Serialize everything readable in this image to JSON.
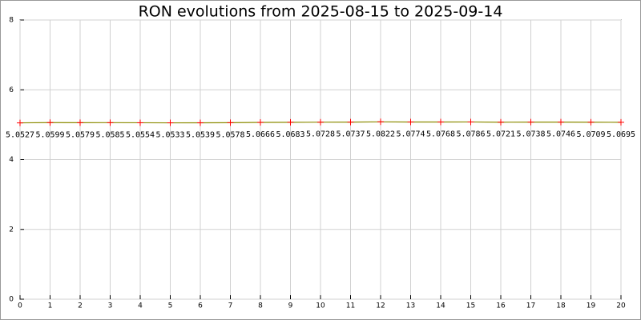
{
  "chart_data": {
    "type": "line",
    "title": "RON evolutions from 2025-08-15 to 2025-09-14",
    "x": [
      0,
      1,
      2,
      3,
      4,
      5,
      6,
      7,
      8,
      9,
      10,
      11,
      12,
      13,
      14,
      15,
      16,
      17,
      18,
      19,
      20
    ],
    "values": [
      5.0527,
      5.0599,
      5.0579,
      5.0585,
      5.0554,
      5.0533,
      5.0539,
      5.0578,
      5.0666,
      5.0683,
      5.0728,
      5.0737,
      5.0822,
      5.0774,
      5.0768,
      5.0786,
      5.0721,
      5.0738,
      5.0746,
      5.0709,
      5.0695
    ],
    "color": "#8b8b00",
    "marker_color": "#ff0000",
    "xlim": [
      0,
      20
    ],
    "xticks": [
      0,
      1,
      2,
      3,
      4,
      5,
      6,
      7,
      8,
      9,
      10,
      11,
      12,
      13,
      14,
      15,
      16,
      17,
      18,
      19,
      20
    ],
    "ylim": [
      0,
      8
    ],
    "yticks": [
      0,
      2,
      4,
      6,
      8
    ],
    "grid": true
  }
}
